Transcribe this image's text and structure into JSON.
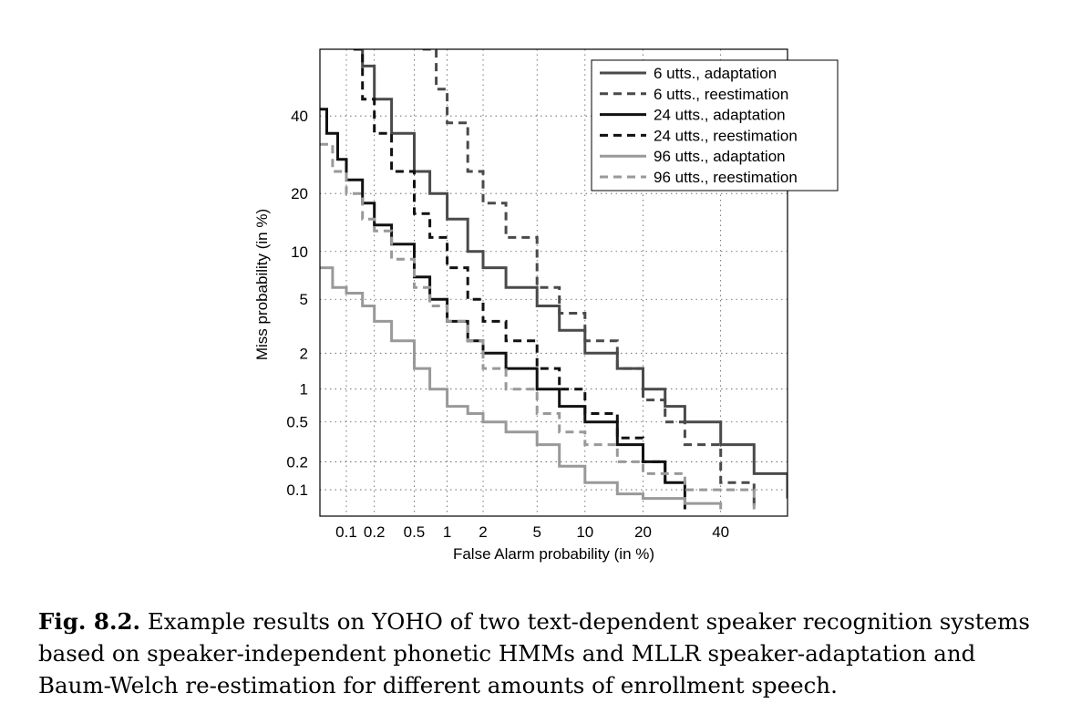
{
  "chart_data": {
    "type": "line",
    "title": "",
    "xlabel": "False Alarm probability (in %)",
    "ylabel": "Miss probability (in %)",
    "x_scale": "normal-deviate (DET)",
    "y_scale": "normal-deviate (DET)",
    "xlim": [
      0.05,
      60
    ],
    "ylim": [
      0.05,
      60
    ],
    "x_ticks": [
      0.1,
      0.2,
      0.5,
      1,
      2,
      5,
      10,
      20,
      40
    ],
    "x_tick_labels": [
      "0.1",
      "0.2",
      "0.5",
      "1",
      "2",
      "5",
      "10",
      "20",
      "40"
    ],
    "y_ticks": [
      0.1,
      0.2,
      0.5,
      1,
      2,
      5,
      10,
      20,
      40
    ],
    "y_tick_labels": [
      "0.1",
      "0.2",
      "0.5",
      "1",
      "2",
      "5",
      "10",
      "20",
      "40"
    ],
    "grid": true,
    "legend_position": "top-right",
    "series": [
      {
        "name": "6 utts., adaptation",
        "color": "#4a4a4a",
        "dash": "solid",
        "x": [
          0.12,
          0.15,
          0.2,
          0.3,
          0.5,
          0.7,
          1,
          1.5,
          2,
          3,
          5,
          7,
          10,
          15,
          20,
          25,
          30,
          40,
          50,
          60
        ],
        "y": [
          60,
          55,
          45,
          35,
          25,
          20,
          15,
          10,
          8,
          6,
          4.5,
          3,
          2,
          1.5,
          1,
          0.7,
          0.5,
          0.3,
          0.15,
          0.08
        ]
      },
      {
        "name": "6 utts., reestimation",
        "color": "#4a4a4a",
        "dash": "dashed",
        "x": [
          0.6,
          0.8,
          1,
          1.5,
          2,
          3,
          5,
          7,
          10,
          15,
          20,
          25,
          30,
          40,
          50
        ],
        "y": [
          60,
          48,
          38,
          25,
          18,
          12,
          6,
          4,
          2.5,
          1.5,
          0.8,
          0.5,
          0.3,
          0.12,
          0.06
        ]
      },
      {
        "name": "24 utts., adaptation",
        "color": "#111111",
        "dash": "solid",
        "x": [
          0.05,
          0.06,
          0.08,
          0.1,
          0.15,
          0.2,
          0.3,
          0.5,
          0.7,
          1,
          1.5,
          2,
          3,
          5,
          7,
          10,
          15,
          20,
          25,
          30
        ],
        "y": [
          42,
          35,
          28,
          23,
          18,
          14,
          11,
          7,
          5,
          3.5,
          2.5,
          2,
          1.5,
          1,
          0.7,
          0.5,
          0.3,
          0.2,
          0.12,
          0.06
        ]
      },
      {
        "name": "24 utts., reestimation",
        "color": "#111111",
        "dash": "dashed",
        "x": [
          0.12,
          0.15,
          0.2,
          0.3,
          0.5,
          0.7,
          1,
          1.5,
          2,
          3,
          5,
          7,
          10,
          15,
          20,
          25
        ],
        "y": [
          60,
          45,
          35,
          25,
          16,
          12,
          8,
          5,
          3.5,
          2.5,
          1.5,
          1,
          0.6,
          0.35,
          0.2,
          0.12
        ]
      },
      {
        "name": "96 utts., adaptation",
        "color": "#999999",
        "dash": "solid",
        "x": [
          0.05,
          0.07,
          0.1,
          0.15,
          0.2,
          0.3,
          0.5,
          0.7,
          1,
          1.5,
          2,
          3,
          5,
          7,
          10,
          15,
          20,
          30,
          40
        ],
        "y": [
          8,
          6,
          5.5,
          4.5,
          3.5,
          2.5,
          1.5,
          1,
          0.7,
          0.6,
          0.5,
          0.4,
          0.3,
          0.18,
          0.12,
          0.09,
          0.08,
          0.07,
          0.06
        ]
      },
      {
        "name": "96 utts., reestimation",
        "color": "#999999",
        "dash": "dashed",
        "x": [
          0.05,
          0.07,
          0.1,
          0.15,
          0.2,
          0.3,
          0.5,
          0.7,
          1,
          1.5,
          2,
          3,
          5,
          7,
          10,
          15,
          20,
          30,
          50
        ],
        "y": [
          32,
          25,
          20,
          15,
          13,
          9,
          6,
          4.5,
          3.5,
          2.5,
          1.5,
          1,
          0.6,
          0.4,
          0.3,
          0.2,
          0.15,
          0.1,
          0.06
        ]
      }
    ]
  },
  "caption": {
    "label": "Fig. 8.2.",
    "text": "Example results on YOHO of two text-dependent speaker recognition systems based on speaker-independent phonetic HMMs and MLLR speaker-adaptation and Baum-Welch re-estimation for different amounts of enrollment speech."
  }
}
